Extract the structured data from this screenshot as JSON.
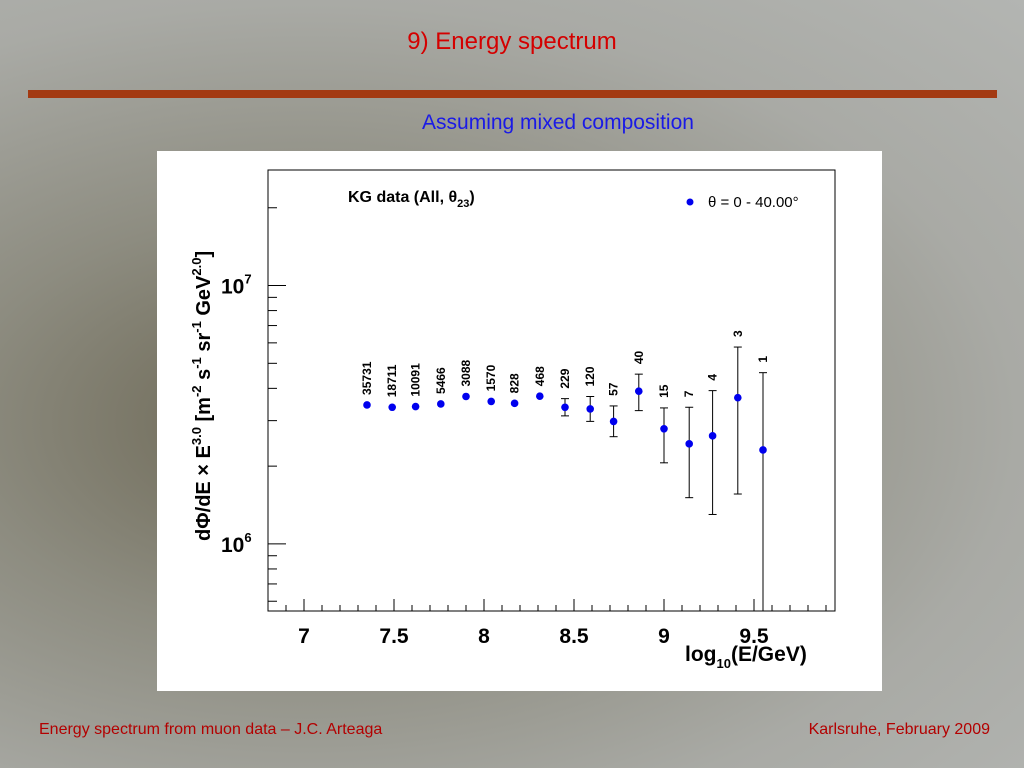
{
  "slide": {
    "title": "9) Energy spectrum",
    "subtitle": "Assuming mixed composition",
    "footer_left": "Energy spectrum from muon data – J.C. Arteaga",
    "footer_right": "Karlsruhe,  February 2009",
    "colors": {
      "title": "#d40000",
      "rule": "#a33a12",
      "subtitle": "#1a1ae6",
      "footer": "#b30000",
      "marker": "#0000ee"
    }
  },
  "chart_data": {
    "type": "scatter",
    "annotation": "KG data (All, θ23)",
    "annotation_main": "KG data (All, θ",
    "annotation_sub": "23",
    "annotation_close": ")",
    "legend": {
      "placement": "top-right",
      "entry": "θ = 0 - 40.00°"
    },
    "xlabel": "log10(E/GeV)",
    "xlabel_main": "log",
    "xlabel_sub": "10",
    "xlabel_tail": "(E/GeV)",
    "ylabel": "dΦ/dE × E^3.0 [m^-2 s^-1 sr^-1 GeV^2.0]",
    "xlim": [
      6.8,
      9.95
    ],
    "ylim": [
      550000,
      28000000
    ],
    "y_scale": "log",
    "x_ticks": [
      {
        "value": 7,
        "label": "7"
      },
      {
        "value": 7.5,
        "label": "7.5"
      },
      {
        "value": 8,
        "label": "8"
      },
      {
        "value": 8.5,
        "label": "8.5"
      },
      {
        "value": 9,
        "label": "9"
      },
      {
        "value": 9.5,
        "label": "9.5"
      }
    ],
    "y_ticks": [
      {
        "value": 1000000,
        "base": "10",
        "exp": "6"
      },
      {
        "value": 10000000,
        "base": "10",
        "exp": "7"
      }
    ],
    "points": [
      {
        "x": 7.35,
        "y": 3450000,
        "err_low": 0,
        "err_high": 0,
        "count": "35731"
      },
      {
        "x": 7.49,
        "y": 3380000,
        "err_low": 0,
        "err_high": 0,
        "count": "18711"
      },
      {
        "x": 7.62,
        "y": 3400000,
        "err_low": 0,
        "err_high": 0,
        "count": "10091"
      },
      {
        "x": 7.76,
        "y": 3480000,
        "err_low": 0,
        "err_high": 0,
        "count": "5466"
      },
      {
        "x": 7.9,
        "y": 3720000,
        "err_low": 0,
        "err_high": 0,
        "count": "3088"
      },
      {
        "x": 8.04,
        "y": 3560000,
        "err_low": 0,
        "err_high": 0,
        "count": "1570"
      },
      {
        "x": 8.17,
        "y": 3500000,
        "err_low": 0,
        "err_high": 0,
        "count": "828"
      },
      {
        "x": 8.31,
        "y": 3730000,
        "err_low": 0,
        "err_high": 0,
        "count": "468"
      },
      {
        "x": 8.45,
        "y": 3380000,
        "err_low": 3130000,
        "err_high": 3650000,
        "count": "229"
      },
      {
        "x": 8.59,
        "y": 3330000,
        "err_low": 2980000,
        "err_high": 3720000,
        "count": "120"
      },
      {
        "x": 8.72,
        "y": 2980000,
        "err_low": 2600000,
        "err_high": 3420000,
        "count": "57"
      },
      {
        "x": 8.86,
        "y": 3900000,
        "err_low": 3280000,
        "err_high": 4540000,
        "count": "40"
      },
      {
        "x": 9.0,
        "y": 2790000,
        "err_low": 2060000,
        "err_high": 3360000,
        "count": "15"
      },
      {
        "x": 9.14,
        "y": 2440000,
        "err_low": 1510000,
        "err_high": 3380000,
        "count": "7"
      },
      {
        "x": 9.27,
        "y": 2620000,
        "err_low": 1300000,
        "err_high": 3920000,
        "count": "4"
      },
      {
        "x": 9.41,
        "y": 3680000,
        "err_low": 1560000,
        "err_high": 5780000,
        "count": "3"
      },
      {
        "x": 9.55,
        "y": 2310000,
        "err_low": 550000,
        "err_high": 4600000,
        "count": "1"
      }
    ]
  }
}
